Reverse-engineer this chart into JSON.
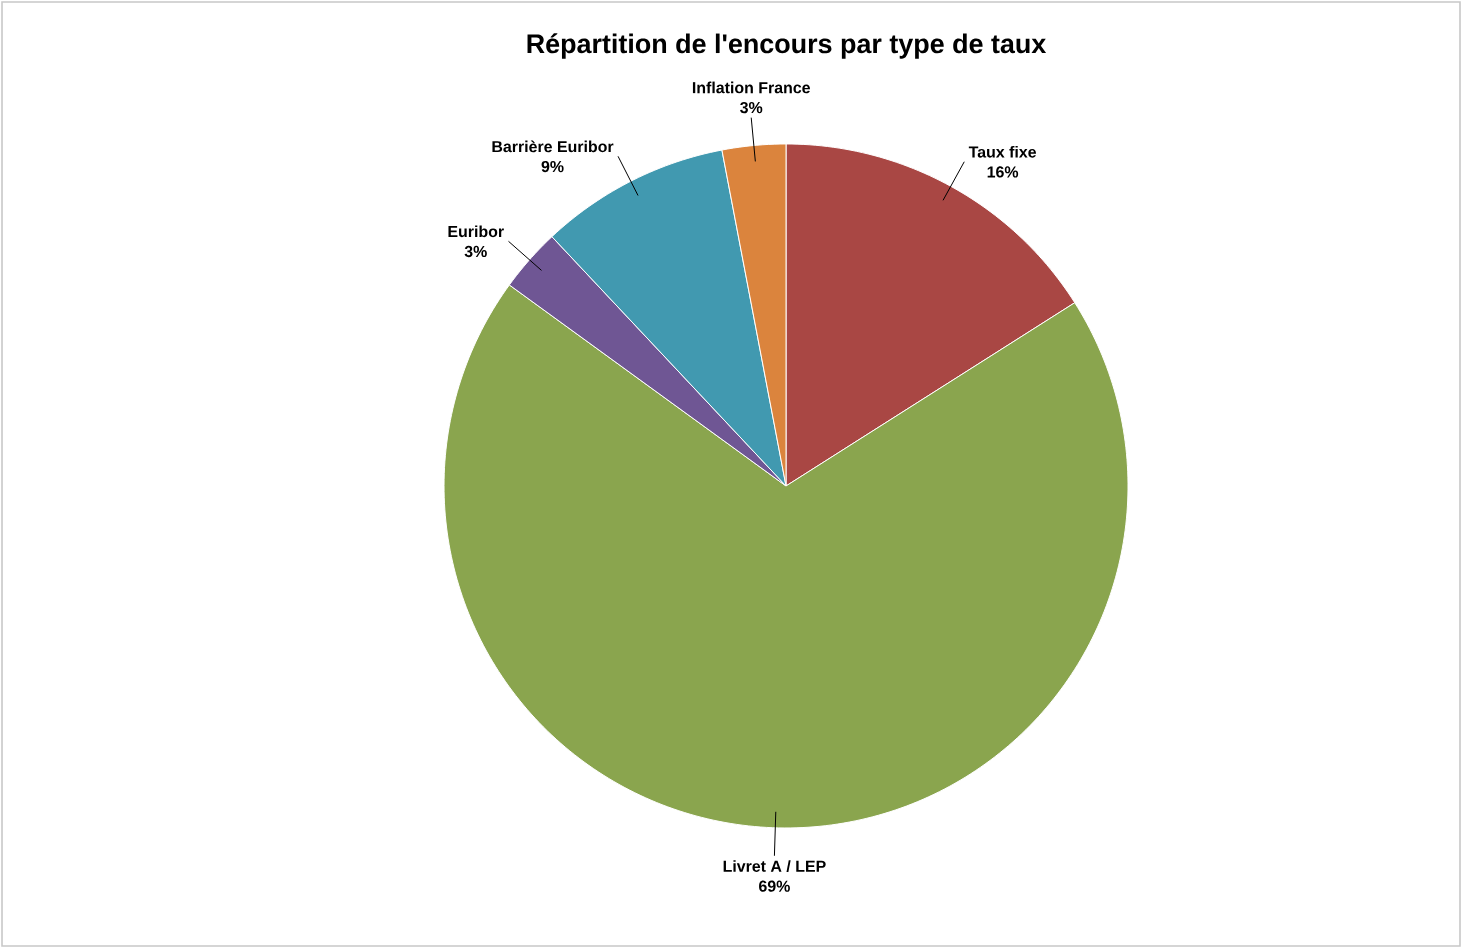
{
  "chart_data": {
    "type": "pie",
    "title": "Répartition de l'encours par type de taux",
    "categories": [
      "Taux fixe",
      "Livret A / LEP",
      "Euribor",
      "Barrière Euribor",
      "Inflation France"
    ],
    "values": [
      16,
      69,
      3,
      9,
      3
    ],
    "value_labels": [
      "16%",
      "69%",
      "3%",
      "9%",
      "3%"
    ],
    "colors": [
      "#a94744",
      "#8aa54e",
      "#6f5694",
      "#4199b0",
      "#db843d"
    ]
  }
}
